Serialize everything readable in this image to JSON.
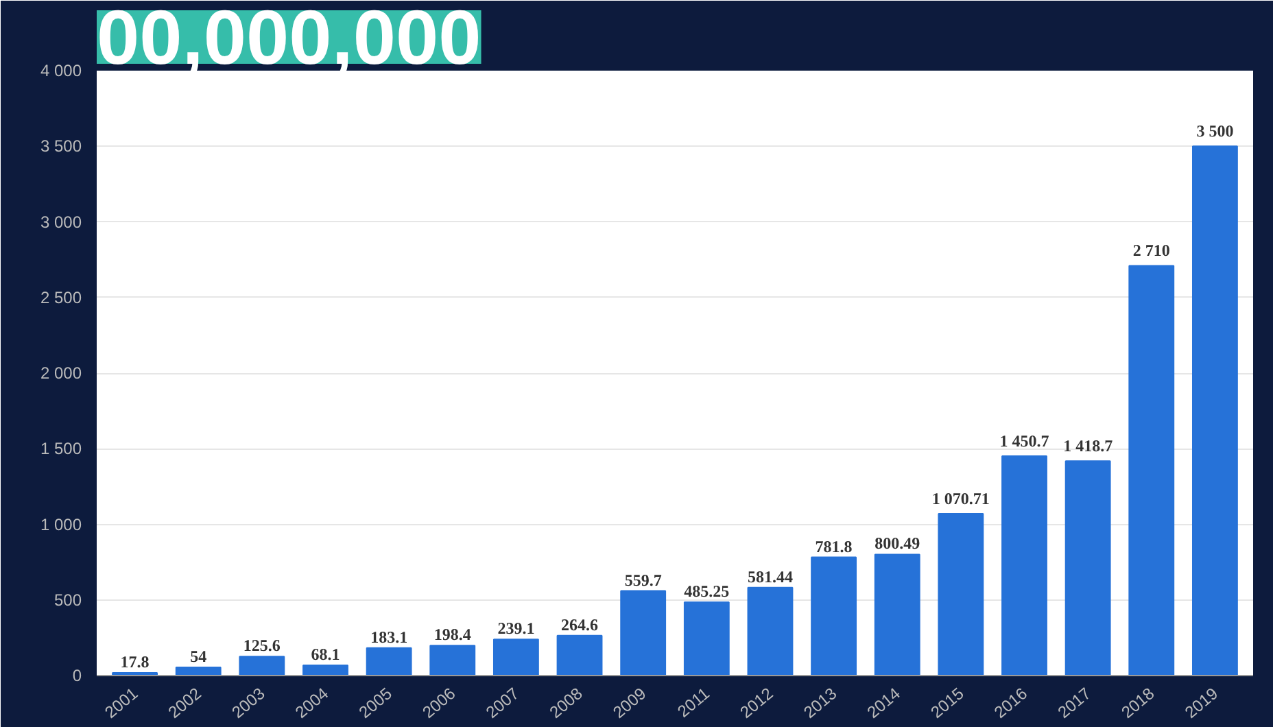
{
  "chart_data": {
    "type": "bar",
    "title": "00,000,000",
    "categories": [
      "2001",
      "2002",
      "2003",
      "2004",
      "2005",
      "2006",
      "2007",
      "2008",
      "2009",
      "2011",
      "2012",
      "2013",
      "2014",
      "2015",
      "2016",
      "2017",
      "2018",
      "2019"
    ],
    "values": [
      17.8,
      54,
      125.6,
      68.1,
      183.1,
      198.4,
      239.1,
      264.6,
      559.7,
      485.25,
      581.44,
      781.8,
      800.49,
      1070.71,
      1450.7,
      1418.7,
      2710,
      3500
    ],
    "value_labels": [
      "17.8",
      "54",
      "125.6",
      "68.1",
      "183.1",
      "198.4",
      "239.1",
      "264.6",
      "559.7",
      "485.25",
      "581.44",
      "781.8",
      "800.49",
      "1 070.71",
      "1 450.7",
      "1 418.7",
      "2 710",
      "3 500"
    ],
    "color": "#2672d8",
    "ylim": [
      0,
      4000
    ],
    "yticks": [
      0,
      500,
      {
        "value": 1000,
        "label": "1 000"
      },
      {
        "value": 1500,
        "label": "1 500"
      },
      {
        "value": 2000,
        "label": "2 000"
      },
      {
        "value": 2500,
        "label": "2 500"
      },
      {
        "value": 3000,
        "label": "3 000"
      },
      {
        "value": 3500,
        "label": "3 500"
      },
      {
        "value": 4000,
        "label": "4 000"
      }
    ],
    "grid": "y"
  }
}
